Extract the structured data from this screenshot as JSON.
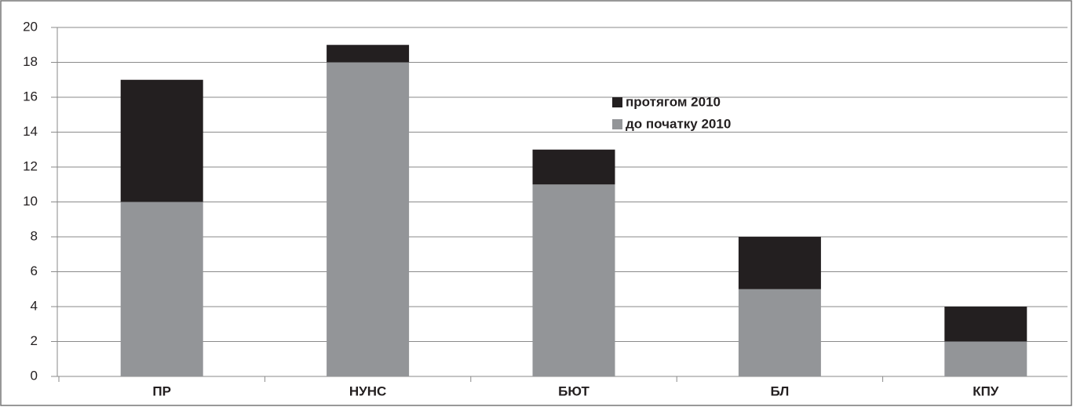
{
  "chart_data": {
    "type": "bar",
    "stacked": true,
    "categories": [
      "ПР",
      "НУНС",
      "БЮТ",
      "БЛ",
      "КПУ"
    ],
    "series": [
      {
        "name": "до початку 2010",
        "color": "#939598",
        "values": [
          10,
          18,
          11,
          5,
          2
        ]
      },
      {
        "name": "протягом 2010",
        "color": "#231f20",
        "values": [
          7,
          1,
          2,
          3,
          2
        ]
      }
    ],
    "ylim": [
      0,
      20
    ],
    "yticks": [
      0,
      2,
      4,
      6,
      8,
      10,
      12,
      14,
      16,
      18,
      20
    ],
    "grid": true,
    "legend": "top-right"
  }
}
